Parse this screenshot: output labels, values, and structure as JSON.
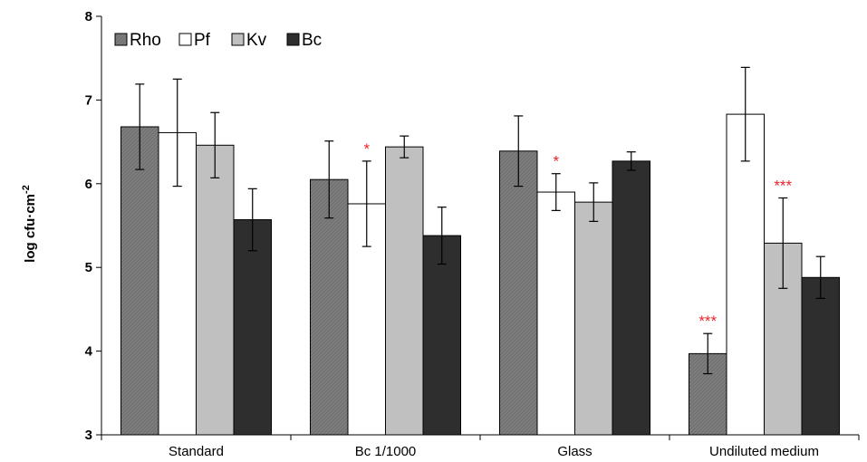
{
  "chart_data": {
    "type": "bar",
    "categories": [
      "Standard",
      "Bc 1/1000",
      "Glass",
      "Undiluted medium"
    ],
    "ylabel": "log cfu·cm",
    "ylabel_sup": "-2",
    "ylim": [
      3,
      8
    ],
    "yticks": [
      "3",
      "4",
      "5",
      "6",
      "7",
      "8"
    ],
    "grid": false,
    "legend_position": "top-left",
    "series": [
      {
        "name": "Rho",
        "color": "#7f7f7f",
        "pattern": "hatched",
        "values": [
          6.68,
          6.05,
          6.39,
          3.97
        ],
        "errors": [
          0.51,
          0.46,
          0.42,
          0.24
        ],
        "significance": [
          "",
          "",
          "",
          "***"
        ]
      },
      {
        "name": "Pf",
        "color": "#ffffff",
        "pattern": "solid",
        "values": [
          6.61,
          5.76,
          5.9,
          6.83
        ],
        "errors": [
          0.64,
          0.51,
          0.22,
          0.56
        ],
        "significance": [
          "",
          "*",
          "*",
          ""
        ]
      },
      {
        "name": "Kv",
        "color": "#c0c0c0",
        "pattern": "solid",
        "values": [
          6.46,
          6.44,
          5.78,
          5.29
        ],
        "errors": [
          0.39,
          0.13,
          0.23,
          0.54
        ],
        "significance": [
          "",
          "",
          "",
          "***"
        ]
      },
      {
        "name": "Bc",
        "color": "#2e2e2e",
        "pattern": "solid",
        "values": [
          5.57,
          5.38,
          6.27,
          4.88
        ],
        "errors": [
          0.37,
          0.34,
          0.11,
          0.25
        ],
        "significance": [
          "",
          "",
          "",
          ""
        ]
      }
    ]
  }
}
